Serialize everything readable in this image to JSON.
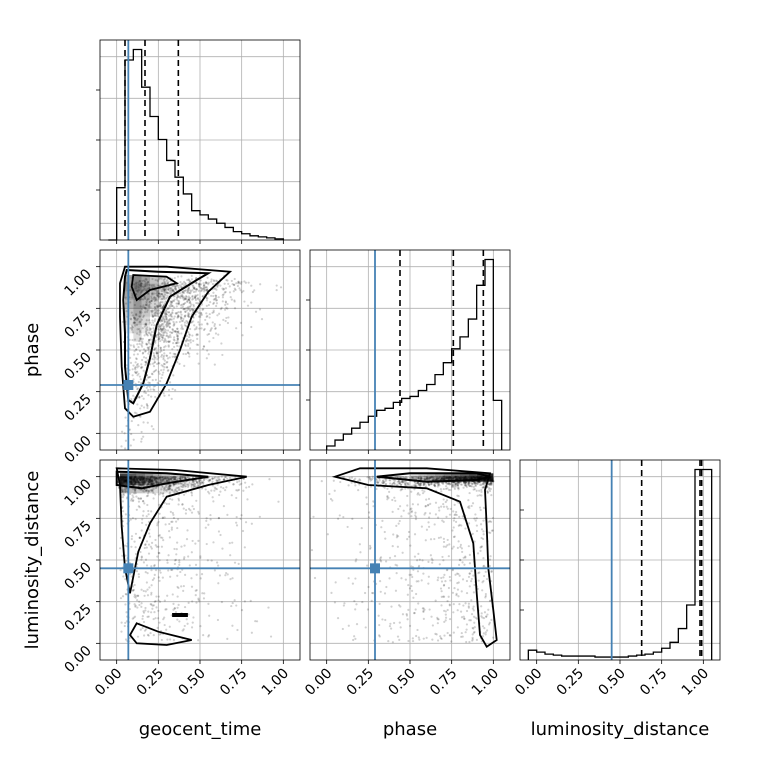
{
  "chart_data": {
    "type": "corner",
    "parameters": [
      "geocent_time",
      "phase",
      "luminosity_distance"
    ],
    "tick_labels": [
      "0.00",
      "0.25",
      "0.50",
      "0.75",
      "1.00"
    ],
    "truths": {
      "geocent_time": 0.07,
      "phase": 0.29,
      "luminosity_distance": 0.45
    },
    "colors": {
      "truth": "#4682b4",
      "hist": "#000000",
      "grid": "#b0b0b0",
      "contour": "#000000"
    },
    "grid": true,
    "marginals": [
      {
        "parameter": "geocent_time",
        "xlim": [
          -0.1,
          1.1
        ],
        "bin_edges": [
          -0.05,
          0.0,
          0.05,
          0.1,
          0.15,
          0.2,
          0.25,
          0.3,
          0.35,
          0.4,
          0.45,
          0.5,
          0.55,
          0.6,
          0.65,
          0.7,
          0.75,
          0.8,
          0.85,
          0.9,
          0.95,
          1.0
        ],
        "counts": [
          0.0,
          0.25,
          0.86,
          0.91,
          0.73,
          0.59,
          0.48,
          0.38,
          0.3,
          0.22,
          0.14,
          0.12,
          0.1,
          0.08,
          0.06,
          0.04,
          0.03,
          0.02,
          0.015,
          0.01,
          0.005
        ],
        "quantiles": [
          0.05,
          0.17,
          0.37
        ]
      },
      {
        "parameter": "phase",
        "xlim": [
          -0.1,
          1.1
        ],
        "bin_edges": [
          0.0,
          0.05,
          0.1,
          0.15,
          0.2,
          0.25,
          0.3,
          0.35,
          0.4,
          0.45,
          0.5,
          0.55,
          0.6,
          0.65,
          0.7,
          0.75,
          0.8,
          0.85,
          0.9,
          0.95,
          1.0,
          1.05
        ],
        "counts": [
          0.02,
          0.05,
          0.08,
          0.11,
          0.14,
          0.17,
          0.2,
          0.21,
          0.24,
          0.26,
          0.27,
          0.3,
          0.33,
          0.38,
          0.44,
          0.51,
          0.57,
          0.66,
          0.83,
          0.96,
          0.25
        ],
        "quantiles": [
          0.44,
          0.76,
          0.94
        ]
      },
      {
        "parameter": "luminosity_distance",
        "xlim": [
          -0.1,
          1.1
        ],
        "bin_edges": [
          -0.05,
          0.0,
          0.05,
          0.1,
          0.15,
          0.2,
          0.25,
          0.3,
          0.35,
          0.4,
          0.45,
          0.5,
          0.55,
          0.6,
          0.65,
          0.7,
          0.75,
          0.8,
          0.85,
          0.9,
          0.95,
          1.0,
          1.05
        ],
        "counts": [
          0.05,
          0.04,
          0.03,
          0.025,
          0.02,
          0.02,
          0.02,
          0.02,
          0.015,
          0.015,
          0.015,
          0.015,
          0.02,
          0.025,
          0.03,
          0.04,
          0.06,
          0.09,
          0.16,
          0.28,
          0.97,
          0.97
        ],
        "quantiles": [
          0.63,
          0.98,
          0.99
        ]
      }
    ],
    "joint_panels": [
      {
        "x": "geocent_time",
        "y": "phase",
        "xlim": [
          -0.1,
          1.1
        ],
        "ylim": [
          -0.1,
          1.1
        ]
      },
      {
        "x": "geocent_time",
        "y": "luminosity_distance",
        "xlim": [
          -0.1,
          1.1
        ],
        "ylim": [
          -0.1,
          1.1
        ]
      },
      {
        "x": "phase",
        "y": "luminosity_distance",
        "xlim": [
          -0.1,
          1.1
        ],
        "ylim": [
          -0.1,
          1.1
        ]
      }
    ]
  }
}
